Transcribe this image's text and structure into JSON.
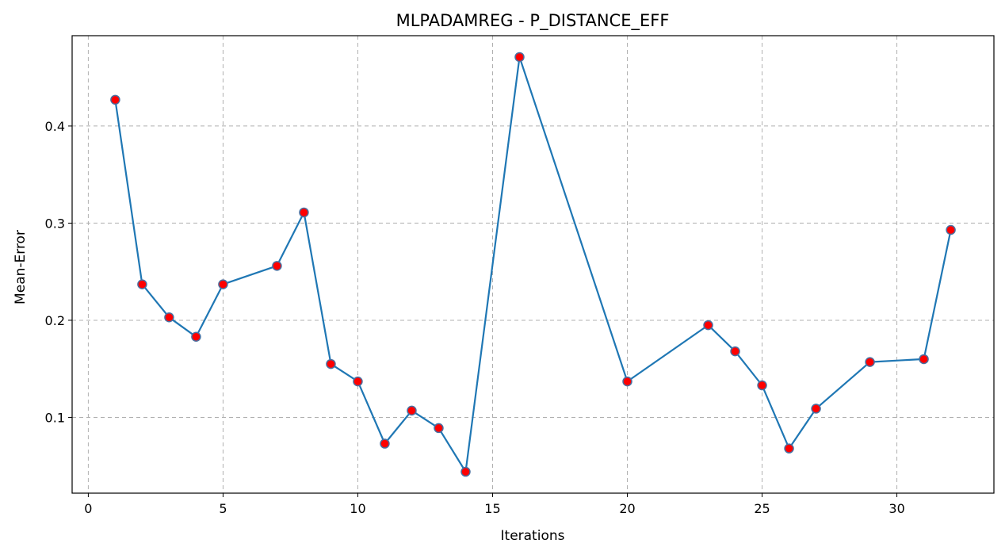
{
  "chart_data": {
    "type": "line",
    "title": "MLPADAMREG - P_DISTANCE_EFF",
    "xlabel": "Iterations",
    "ylabel": "Mean-Error",
    "xlim": [
      -0.6,
      33.6
    ],
    "ylim": [
      0.022,
      0.493
    ],
    "xticks": [
      0,
      5,
      10,
      15,
      20,
      25,
      30
    ],
    "yticks": [
      0.1,
      0.2,
      0.3,
      0.4
    ],
    "grid": true,
    "line_color": "#1f77b4",
    "marker_face_color": "#ff0000",
    "marker_edge_color": "#4a6fa0",
    "series": [
      {
        "x": [
          1,
          2,
          3,
          4,
          5,
          7,
          8,
          9,
          10,
          11,
          12,
          13,
          14,
          16,
          20,
          23,
          24,
          25,
          26,
          27,
          29,
          31,
          32
        ],
        "y": [
          0.427,
          0.237,
          0.203,
          0.183,
          0.237,
          0.256,
          0.311,
          0.155,
          0.137,
          0.073,
          0.107,
          0.089,
          0.044,
          0.471,
          0.137,
          0.195,
          0.168,
          0.133,
          0.068,
          0.109,
          0.157,
          0.16,
          0.293
        ]
      }
    ]
  }
}
